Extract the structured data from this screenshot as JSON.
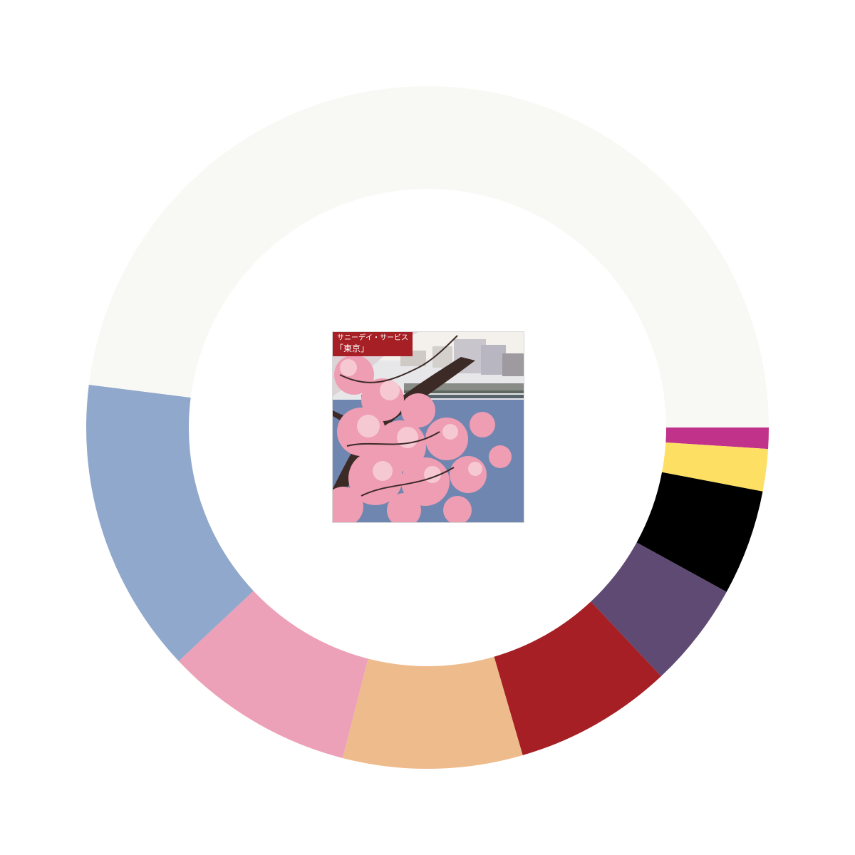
{
  "album": {
    "artist": "サニーデイ・サービス",
    "title": "「東京」",
    "artwork_icon": "cherry-blossom-photo-icon"
  },
  "chart_data": {
    "type": "pie",
    "variant": "donut",
    "start_angle_degrees": 0,
    "direction": "clockwise",
    "categories": [
      "magenta",
      "yellow",
      "black",
      "purple",
      "red",
      "peach",
      "pink",
      "blue",
      "off-white"
    ],
    "values": [
      1.0,
      2.0,
      5.0,
      5.0,
      7.5,
      8.5,
      9.0,
      14.0,
      48.0
    ],
    "colors": [
      "#c1328a",
      "#fde063",
      "#000000",
      "#5f4a74",
      "#a51f24",
      "#eebb8c",
      "#eca1b8",
      "#90a8cb",
      "#f8f8f4"
    ],
    "title": "",
    "legend": "none"
  }
}
